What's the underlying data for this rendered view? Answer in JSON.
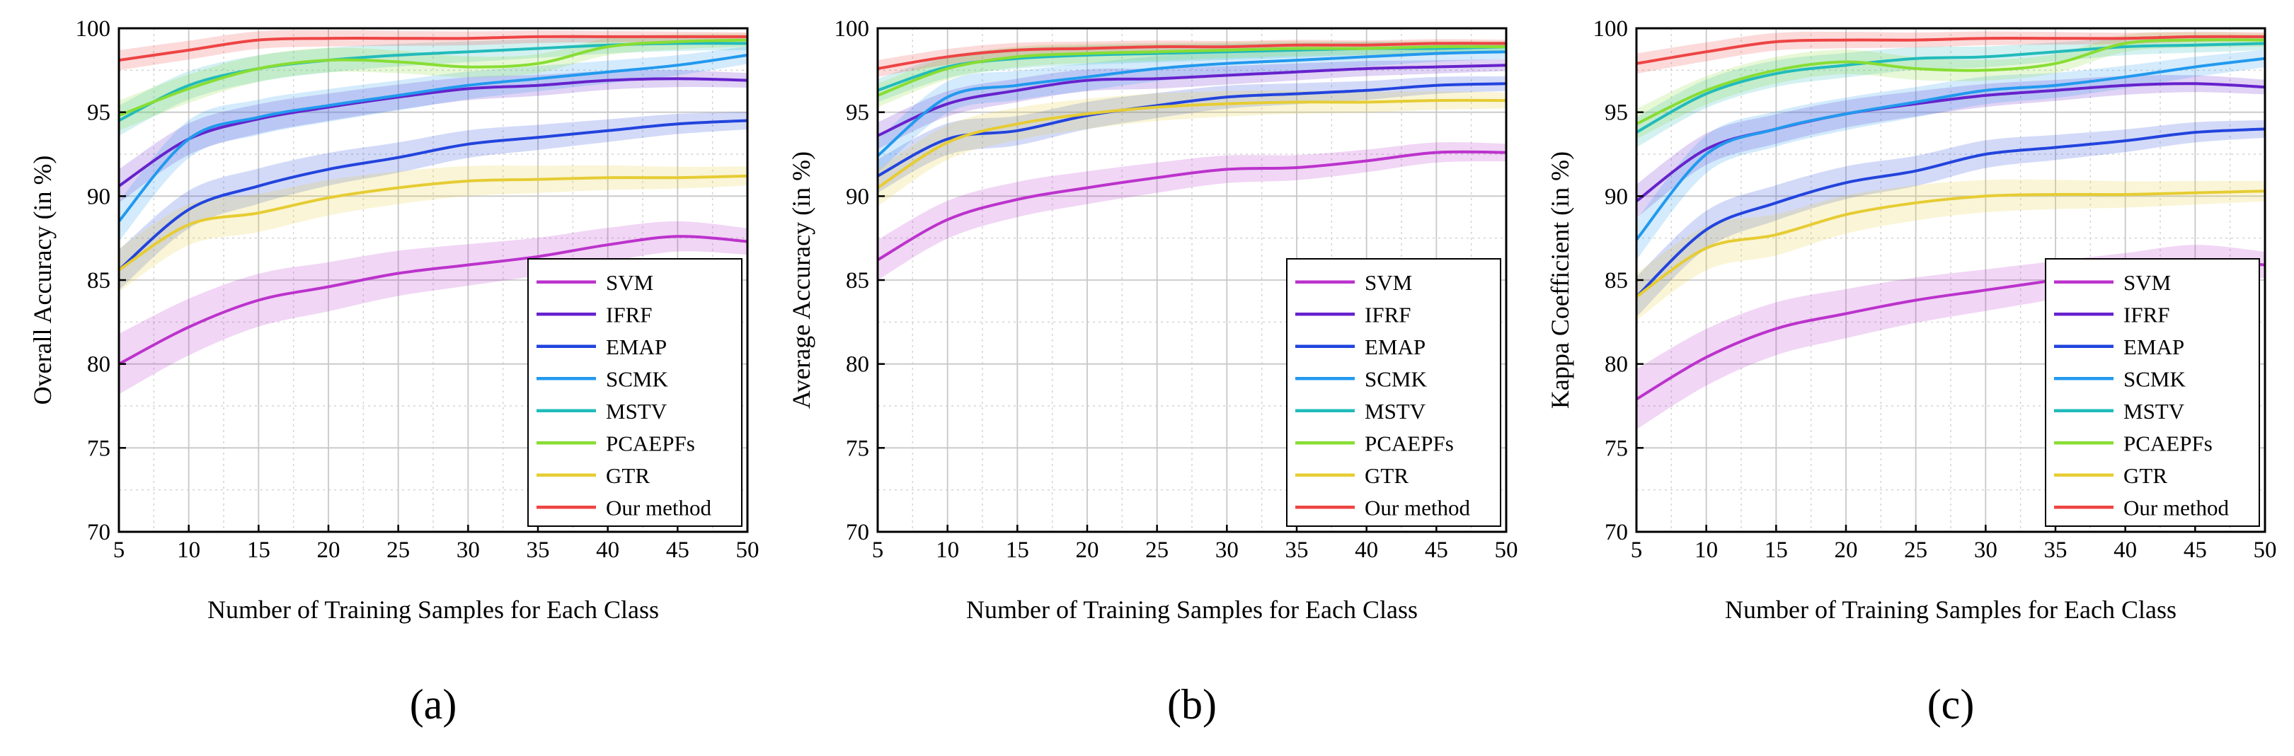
{
  "chart_data": [
    {
      "id": "a",
      "type": "line",
      "panel_label": "(a)",
      "xlabel": "Number of Training Samples for Each Class",
      "ylabel": "Overall Accuracy (in %)",
      "xlim": [
        5,
        50
      ],
      "ylim": [
        70,
        100
      ],
      "xticks": [
        5,
        10,
        15,
        20,
        25,
        30,
        35,
        40,
        45,
        50
      ],
      "yticks": [
        70,
        75,
        80,
        85,
        90,
        95,
        100
      ],
      "grid": true,
      "legend_position": "bottom-right",
      "x": [
        5,
        10,
        15,
        20,
        25,
        30,
        35,
        40,
        45,
        50
      ],
      "series": [
        {
          "name": "SVM",
          "color": "#bb33cc",
          "values": [
            80.0,
            82.2,
            83.8,
            84.6,
            85.4,
            85.9,
            86.4,
            87.1,
            87.6,
            87.3
          ],
          "band": 1.8
        },
        {
          "name": "IFRF",
          "color": "#6622cc",
          "values": [
            90.6,
            93.4,
            94.6,
            95.3,
            95.9,
            96.4,
            96.6,
            96.9,
            97.0,
            96.9
          ],
          "band": 1.0
        },
        {
          "name": "EMAP",
          "color": "#2244dd",
          "values": [
            85.6,
            89.2,
            90.6,
            91.6,
            92.3,
            93.1,
            93.5,
            93.9,
            94.3,
            94.5
          ],
          "band": 1.2
        },
        {
          "name": "SCMK",
          "color": "#2299ee",
          "values": [
            88.5,
            93.4,
            94.7,
            95.4,
            96.0,
            96.6,
            97.0,
            97.4,
            97.8,
            98.4
          ],
          "band": 1.2
        },
        {
          "name": "MSTV",
          "color": "#22bbbb",
          "values": [
            94.5,
            96.6,
            97.6,
            98.1,
            98.4,
            98.6,
            98.8,
            99.0,
            99.1,
            99.1
          ],
          "band": 0.9
        },
        {
          "name": "PCAEPFs",
          "color": "#88dd33",
          "values": [
            94.8,
            96.4,
            97.6,
            98.1,
            98.0,
            97.7,
            97.9,
            98.9,
            99.2,
            99.3
          ],
          "band": 0.9
        },
        {
          "name": "GTR",
          "color": "#e6cc33",
          "values": [
            85.6,
            88.3,
            89.0,
            89.9,
            90.5,
            90.9,
            91.0,
            91.1,
            91.1,
            91.2
          ],
          "band": 1.3
        },
        {
          "name": "Our method",
          "color": "#ee4444",
          "values": [
            98.1,
            98.7,
            99.3,
            99.4,
            99.4,
            99.4,
            99.5,
            99.5,
            99.5,
            99.5
          ],
          "band": 0.6
        }
      ]
    },
    {
      "id": "b",
      "type": "line",
      "panel_label": "(b)",
      "xlabel": "Number of Training Samples for Each Class",
      "ylabel": "Average Accuracy (in %)",
      "xlim": [
        5,
        50
      ],
      "ylim": [
        70,
        100
      ],
      "xticks": [
        5,
        10,
        15,
        20,
        25,
        30,
        35,
        40,
        45,
        50
      ],
      "yticks": [
        70,
        75,
        80,
        85,
        90,
        95,
        100
      ],
      "grid": true,
      "legend_position": "bottom-right",
      "x": [
        5,
        10,
        15,
        20,
        25,
        30,
        35,
        40,
        45,
        50
      ],
      "series": [
        {
          "name": "SVM",
          "color": "#bb33cc",
          "values": [
            86.2,
            88.6,
            89.8,
            90.5,
            91.1,
            91.6,
            91.7,
            92.1,
            92.6,
            92.6
          ],
          "band": 1.2
        },
        {
          "name": "IFRF",
          "color": "#6622cc",
          "values": [
            93.6,
            95.5,
            96.3,
            96.9,
            97.0,
            97.2,
            97.4,
            97.6,
            97.7,
            97.8
          ],
          "band": 0.8
        },
        {
          "name": "EMAP",
          "color": "#2244dd",
          "values": [
            91.2,
            93.4,
            93.9,
            94.8,
            95.4,
            95.9,
            96.1,
            96.3,
            96.6,
            96.7
          ],
          "band": 1.0
        },
        {
          "name": "SCMK",
          "color": "#2299ee",
          "values": [
            92.4,
            95.9,
            96.6,
            97.1,
            97.6,
            97.9,
            98.1,
            98.3,
            98.5,
            98.6
          ],
          "band": 1.0
        },
        {
          "name": "MSTV",
          "color": "#22bbbb",
          "values": [
            96.3,
            97.7,
            98.2,
            98.4,
            98.5,
            98.6,
            98.7,
            98.8,
            98.8,
            98.9
          ],
          "band": 0.7
        },
        {
          "name": "PCAEPFs",
          "color": "#88dd33",
          "values": [
            96.0,
            97.6,
            98.3,
            98.5,
            98.6,
            98.7,
            98.8,
            98.8,
            98.9,
            98.9
          ],
          "band": 0.7
        },
        {
          "name": "GTR",
          "color": "#e6cc33",
          "values": [
            90.5,
            93.2,
            94.3,
            94.9,
            95.3,
            95.5,
            95.6,
            95.6,
            95.7,
            95.7
          ],
          "band": 1.1
        },
        {
          "name": "Our method",
          "color": "#ee4444",
          "values": [
            97.6,
            98.3,
            98.7,
            98.8,
            98.9,
            98.9,
            99.0,
            99.0,
            99.1,
            99.1
          ],
          "band": 0.5
        }
      ]
    },
    {
      "id": "c",
      "type": "line",
      "panel_label": "(c)",
      "xlabel": "Number of Training Samples for Each Class",
      "ylabel": "Kappa Coefficient (in %)",
      "xlim": [
        5,
        50
      ],
      "ylim": [
        70,
        100
      ],
      "xticks": [
        5,
        10,
        15,
        20,
        25,
        30,
        35,
        40,
        45,
        50
      ],
      "yticks": [
        70,
        75,
        80,
        85,
        90,
        95,
        100
      ],
      "grid": true,
      "legend_position": "bottom-right",
      "x": [
        5,
        10,
        15,
        20,
        25,
        30,
        35,
        40,
        45,
        50
      ],
      "series": [
        {
          "name": "SVM",
          "color": "#bb33cc",
          "values": [
            77.9,
            80.4,
            82.1,
            83.0,
            83.8,
            84.4,
            85.0,
            85.6,
            86.2,
            85.9
          ],
          "band": 1.8
        },
        {
          "name": "IFRF",
          "color": "#6622cc",
          "values": [
            89.7,
            92.8,
            94.0,
            94.9,
            95.5,
            96.0,
            96.3,
            96.6,
            96.7,
            96.5
          ],
          "band": 1.0
        },
        {
          "name": "EMAP",
          "color": "#2244dd",
          "values": [
            84.0,
            88.0,
            89.6,
            90.8,
            91.5,
            92.5,
            92.9,
            93.3,
            93.8,
            94.0
          ],
          "band": 1.2
        },
        {
          "name": "SCMK",
          "color": "#2299ee",
          "values": [
            87.4,
            92.5,
            94.0,
            94.9,
            95.6,
            96.3,
            96.6,
            97.1,
            97.7,
            98.2
          ],
          "band": 1.2
        },
        {
          "name": "MSTV",
          "color": "#22bbbb",
          "values": [
            93.8,
            96.1,
            97.3,
            97.8,
            98.2,
            98.3,
            98.6,
            98.9,
            99.0,
            99.1
          ],
          "band": 0.9
        },
        {
          "name": "PCAEPFs",
          "color": "#88dd33",
          "values": [
            94.3,
            96.3,
            97.5,
            98.0,
            97.6,
            97.5,
            97.9,
            99.1,
            99.3,
            99.3
          ],
          "band": 0.9
        },
        {
          "name": "GTR",
          "color": "#e6cc33",
          "values": [
            84.0,
            86.9,
            87.7,
            88.9,
            89.6,
            90.0,
            90.1,
            90.1,
            90.2,
            90.3
          ],
          "band": 1.4
        },
        {
          "name": "Our method",
          "color": "#ee4444",
          "values": [
            97.9,
            98.6,
            99.2,
            99.3,
            99.3,
            99.4,
            99.4,
            99.4,
            99.5,
            99.5
          ],
          "band": 0.6
        }
      ]
    }
  ]
}
